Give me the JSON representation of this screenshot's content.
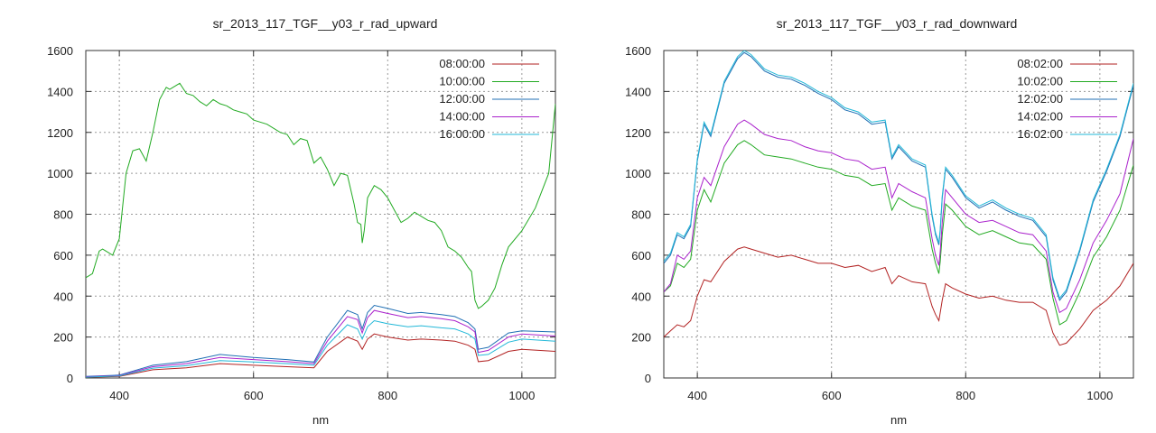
{
  "chart_data": [
    {
      "type": "line",
      "title": "sr_2013_117_TGF__y03_r_rad_upward",
      "xlabel": "nm",
      "ylabel": "",
      "xlim": [
        350,
        1050
      ],
      "ylim": [
        0,
        1600
      ],
      "xticks": [
        400,
        600,
        800,
        1000
      ],
      "yticks": [
        0,
        200,
        400,
        600,
        800,
        1000,
        1200,
        1400,
        1600
      ],
      "grid": true,
      "legend": "top-right",
      "series": [
        {
          "name": "08:00:00",
          "color": "#b22222",
          "x": [
            350,
            400,
            450,
            500,
            550,
            600,
            650,
            690,
            710,
            740,
            755,
            762,
            770,
            780,
            800,
            830,
            850,
            880,
            900,
            920,
            930,
            935,
            950,
            980,
            1000,
            1050
          ],
          "y": [
            3,
            8,
            40,
            50,
            70,
            62,
            55,
            50,
            130,
            200,
            180,
            140,
            190,
            215,
            200,
            185,
            190,
            185,
            180,
            160,
            140,
            80,
            85,
            130,
            140,
            130
          ]
        },
        {
          "name": "10:00:00",
          "color": "#22aa22",
          "x": [
            350,
            360,
            370,
            375,
            380,
            390,
            400,
            410,
            420,
            430,
            440,
            450,
            460,
            470,
            475,
            480,
            490,
            500,
            510,
            520,
            530,
            540,
            550,
            560,
            570,
            580,
            590,
            600,
            620,
            640,
            650,
            660,
            670,
            680,
            690,
            700,
            710,
            720,
            730,
            740,
            750,
            755,
            760,
            762,
            765,
            770,
            780,
            790,
            800,
            810,
            820,
            830,
            840,
            850,
            860,
            870,
            880,
            890,
            900,
            910,
            920,
            925,
            930,
            935,
            940,
            950,
            960,
            970,
            980,
            1000,
            1020,
            1040,
            1050
          ],
          "y": [
            490,
            510,
            620,
            630,
            620,
            600,
            680,
            1000,
            1110,
            1120,
            1060,
            1200,
            1360,
            1420,
            1410,
            1420,
            1440,
            1390,
            1380,
            1350,
            1330,
            1360,
            1340,
            1330,
            1310,
            1300,
            1290,
            1260,
            1240,
            1200,
            1190,
            1140,
            1170,
            1160,
            1050,
            1080,
            1020,
            940,
            1000,
            990,
            850,
            760,
            750,
            660,
            720,
            880,
            940,
            920,
            880,
            820,
            760,
            780,
            810,
            790,
            770,
            760,
            720,
            640,
            620,
            590,
            540,
            520,
            380,
            340,
            350,
            380,
            440,
            550,
            640,
            720,
            830,
            1000,
            1340
          ]
        },
        {
          "name": "12:00:00",
          "color": "#1f6fb4",
          "x": [
            350,
            400,
            450,
            500,
            550,
            600,
            650,
            690,
            710,
            740,
            755,
            762,
            770,
            780,
            800,
            830,
            850,
            880,
            900,
            920,
            930,
            935,
            950,
            980,
            1000,
            1050
          ],
          "y": [
            8,
            14,
            62,
            80,
            115,
            100,
            90,
            78,
            200,
            330,
            310,
            240,
            320,
            355,
            340,
            315,
            320,
            310,
            300,
            270,
            240,
            140,
            150,
            220,
            230,
            225
          ]
        },
        {
          "name": "14:00:00",
          "color": "#aa22cc",
          "x": [
            350,
            400,
            450,
            500,
            550,
            600,
            650,
            690,
            710,
            740,
            755,
            762,
            770,
            780,
            800,
            830,
            850,
            880,
            900,
            920,
            930,
            935,
            950,
            980,
            1000,
            1050
          ],
          "y": [
            6,
            12,
            55,
            70,
            100,
            90,
            80,
            70,
            180,
            300,
            285,
            220,
            295,
            330,
            315,
            295,
            300,
            290,
            280,
            250,
            225,
            125,
            135,
            200,
            215,
            205
          ]
        },
        {
          "name": "16:00:00",
          "color": "#22b8d8",
          "x": [
            350,
            400,
            450,
            500,
            550,
            600,
            650,
            690,
            710,
            740,
            755,
            762,
            770,
            780,
            800,
            830,
            850,
            880,
            900,
            920,
            930,
            935,
            950,
            980,
            1000,
            1050
          ],
          "y": [
            4,
            10,
            48,
            60,
            85,
            78,
            70,
            62,
            160,
            260,
            240,
            190,
            250,
            280,
            265,
            250,
            255,
            245,
            240,
            215,
            190,
            110,
            115,
            175,
            190,
            180
          ]
        }
      ]
    },
    {
      "type": "line",
      "title": "sr_2013_117_TGF__y03_r_rad_downward",
      "xlabel": "nm",
      "ylabel": "",
      "xlim": [
        350,
        1050
      ],
      "ylim": [
        0,
        1600
      ],
      "xticks": [
        400,
        600,
        800,
        1000
      ],
      "yticks": [
        0,
        200,
        400,
        600,
        800,
        1000,
        1200,
        1400,
        1600
      ],
      "grid": true,
      "legend": "top-right",
      "series": [
        {
          "name": "08:02:00",
          "color": "#b22222",
          "x": [
            350,
            360,
            370,
            380,
            390,
            400,
            410,
            420,
            440,
            460,
            470,
            480,
            500,
            520,
            540,
            560,
            580,
            600,
            620,
            640,
            660,
            680,
            690,
            700,
            720,
            740,
            750,
            755,
            760,
            762,
            765,
            770,
            780,
            800,
            820,
            840,
            860,
            880,
            900,
            920,
            930,
            940,
            950,
            970,
            990,
            1010,
            1030,
            1050
          ],
          "y": [
            200,
            230,
            260,
            250,
            280,
            400,
            480,
            470,
            570,
            630,
            640,
            630,
            610,
            590,
            600,
            580,
            560,
            560,
            540,
            550,
            520,
            540,
            460,
            500,
            470,
            460,
            350,
            310,
            280,
            320,
            380,
            460,
            440,
            410,
            390,
            400,
            380,
            370,
            370,
            330,
            220,
            160,
            170,
            240,
            330,
            380,
            450,
            560
          ]
        },
        {
          "name": "10:02:00",
          "color": "#22aa22",
          "x": [
            350,
            360,
            370,
            380,
            390,
            400,
            410,
            420,
            440,
            460,
            470,
            480,
            500,
            520,
            540,
            560,
            580,
            600,
            620,
            640,
            660,
            680,
            690,
            700,
            720,
            740,
            750,
            755,
            760,
            762,
            765,
            770,
            780,
            800,
            820,
            840,
            860,
            880,
            900,
            920,
            930,
            940,
            950,
            970,
            990,
            1010,
            1030,
            1050
          ],
          "y": [
            420,
            450,
            560,
            540,
            580,
            820,
            920,
            860,
            1050,
            1140,
            1160,
            1140,
            1090,
            1080,
            1070,
            1050,
            1030,
            1020,
            990,
            980,
            940,
            950,
            820,
            880,
            840,
            820,
            630,
            560,
            510,
            570,
            700,
            850,
            820,
            740,
            700,
            720,
            690,
            660,
            650,
            580,
            390,
            260,
            280,
            420,
            590,
            690,
            820,
            1040
          ]
        },
        {
          "name": "12:02:00",
          "color": "#1f6fb4",
          "x": [
            350,
            360,
            370,
            380,
            390,
            400,
            410,
            420,
            440,
            460,
            470,
            480,
            500,
            520,
            540,
            560,
            580,
            600,
            620,
            640,
            660,
            680,
            690,
            700,
            720,
            740,
            750,
            755,
            760,
            762,
            765,
            770,
            780,
            800,
            820,
            840,
            860,
            880,
            900,
            920,
            930,
            940,
            950,
            970,
            990,
            1010,
            1030,
            1050
          ],
          "y": [
            560,
            600,
            700,
            680,
            740,
            1060,
            1240,
            1180,
            1440,
            1560,
            1590,
            1570,
            1500,
            1470,
            1460,
            1430,
            1390,
            1360,
            1310,
            1290,
            1240,
            1250,
            1070,
            1130,
            1060,
            1030,
            790,
            700,
            650,
            720,
            880,
            1020,
            980,
            880,
            830,
            860,
            820,
            790,
            770,
            690,
            480,
            380,
            420,
            620,
            860,
            1010,
            1180,
            1430
          ]
        },
        {
          "name": "14:02:00",
          "color": "#aa22cc",
          "x": [
            350,
            360,
            370,
            380,
            390,
            400,
            410,
            420,
            440,
            460,
            470,
            480,
            500,
            520,
            540,
            560,
            580,
            600,
            620,
            640,
            660,
            680,
            690,
            700,
            720,
            740,
            750,
            755,
            760,
            762,
            765,
            770,
            780,
            800,
            820,
            840,
            860,
            880,
            900,
            920,
            930,
            940,
            950,
            970,
            990,
            1010,
            1030,
            1050
          ],
          "y": [
            420,
            460,
            600,
            580,
            620,
            880,
            980,
            940,
            1130,
            1240,
            1260,
            1240,
            1190,
            1170,
            1160,
            1130,
            1110,
            1100,
            1070,
            1060,
            1020,
            1030,
            880,
            950,
            910,
            880,
            680,
            600,
            550,
            620,
            760,
            920,
            880,
            800,
            760,
            770,
            740,
            710,
            700,
            620,
            420,
            320,
            340,
            480,
            660,
            770,
            900,
            1170
          ]
        },
        {
          "name": "16:02:00",
          "color": "#22b8d8",
          "x": [
            350,
            360,
            370,
            380,
            390,
            400,
            410,
            420,
            440,
            460,
            470,
            480,
            500,
            520,
            540,
            560,
            580,
            600,
            620,
            640,
            660,
            680,
            690,
            700,
            720,
            740,
            750,
            755,
            760,
            762,
            765,
            770,
            780,
            800,
            820,
            840,
            860,
            880,
            900,
            920,
            930,
            940,
            950,
            970,
            990,
            1010,
            1030,
            1050
          ],
          "y": [
            570,
            610,
            710,
            690,
            750,
            1070,
            1250,
            1190,
            1450,
            1570,
            1600,
            1580,
            1510,
            1480,
            1470,
            1440,
            1400,
            1370,
            1320,
            1300,
            1250,
            1260,
            1080,
            1140,
            1070,
            1040,
            800,
            710,
            660,
            730,
            890,
            1030,
            990,
            890,
            840,
            870,
            830,
            800,
            780,
            700,
            490,
            390,
            430,
            630,
            870,
            1020,
            1190,
            1440
          ]
        }
      ]
    }
  ]
}
